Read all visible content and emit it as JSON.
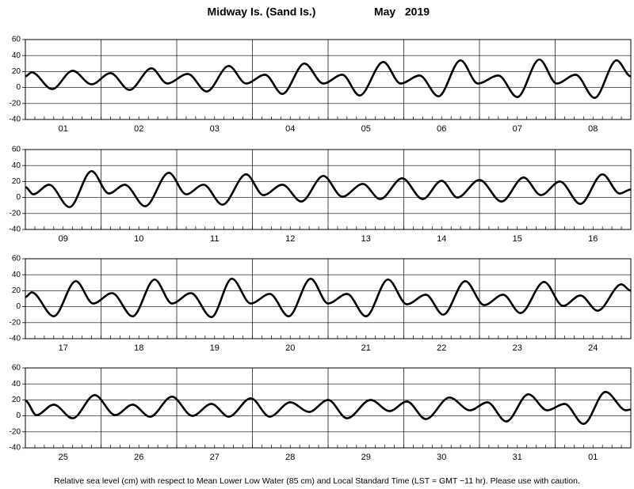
{
  "title": "Midway Is. (Sand Is.)",
  "date": "May   2019",
  "footnote": "Relative sea level (cm) with respect to Mean Lower Low Water (85 cm) and Local Standard Time (LST = GMT −11 hr). Please use with caution.",
  "chart_data": [
    {
      "type": "line",
      "color": "#000000",
      "categories": [
        "01",
        "02",
        "03",
        "04",
        "05",
        "06",
        "07",
        "08"
      ],
      "x": [
        0,
        2,
        8.5,
        15,
        21,
        27,
        33,
        40,
        45,
        51.5,
        57.5,
        64.5,
        70,
        76,
        81.5,
        88.5,
        94.5,
        100.5,
        106,
        113.5,
        119,
        125,
        131,
        138,
        143.5,
        150,
        156,
        163,
        168.5,
        174.5,
        180.5,
        187.5,
        192
      ],
      "values": [
        14,
        19,
        -2,
        21,
        4,
        18,
        -3,
        24,
        5,
        17,
        -5,
        27,
        5,
        16,
        -8,
        30,
        5,
        16,
        -10,
        32,
        5,
        15,
        -11,
        34,
        5,
        15,
        -12,
        35,
        5,
        16,
        -13,
        34,
        14
      ],
      "xlim": [
        0,
        192
      ],
      "ylim": [
        -40,
        60
      ],
      "yticks": [
        -40,
        -20,
        0,
        20,
        40,
        60
      ]
    },
    {
      "type": "line",
      "color": "#000000",
      "categories": [
        "09",
        "10",
        "11",
        "12",
        "13",
        "14",
        "15",
        "16"
      ],
      "x": [
        0,
        2.5,
        7.5,
        14,
        21,
        26.5,
        31.5,
        38,
        45.5,
        51,
        56.5,
        62.5,
        70,
        75.5,
        81.5,
        87.5,
        94.5,
        100.5,
        107,
        112.5,
        119.5,
        126,
        132,
        137,
        144,
        151,
        158,
        163.5,
        169.5,
        176,
        183,
        188.5,
        192
      ],
      "values": [
        13,
        4,
        16,
        -12,
        33,
        5,
        16,
        -11,
        31,
        4,
        16,
        -9,
        29,
        3,
        16,
        -5,
        27,
        1,
        17,
        -2,
        24,
        -2,
        21,
        0,
        22,
        -5,
        25,
        3,
        20,
        -8,
        29,
        5,
        10
      ],
      "xlim": [
        0,
        192
      ],
      "ylim": [
        -40,
        60
      ],
      "yticks": [
        -40,
        -20,
        0,
        20,
        40,
        60
      ]
    },
    {
      "type": "line",
      "color": "#000000",
      "categories": [
        "17",
        "18",
        "19",
        "20",
        "21",
        "22",
        "23",
        "24"
      ],
      "x": [
        0,
        2,
        9,
        16,
        21.5,
        27.5,
        34,
        41,
        46.5,
        52.5,
        59,
        65.5,
        71.5,
        77.5,
        83.5,
        90.5,
        96,
        102,
        108,
        115,
        121,
        127,
        132.5,
        139.5,
        145.5,
        151.5,
        157,
        164.5,
        170.5,
        176,
        181.5,
        189,
        192
      ],
      "values": [
        12,
        18,
        -12,
        32,
        4,
        17,
        -12,
        34,
        4,
        17,
        -13,
        35,
        4,
        16,
        -12,
        35,
        4,
        16,
        -12,
        34,
        3,
        15,
        -10,
        32,
        2,
        15,
        -8,
        31,
        1,
        14,
        -5,
        28,
        20
      ],
      "xlim": [
        0,
        192
      ],
      "ylim": [
        -40,
        60
      ],
      "yticks": [
        -40,
        -20,
        0,
        20,
        40,
        60
      ]
    },
    {
      "type": "line",
      "color": "#000000",
      "categories": [
        "25",
        "26",
        "27",
        "28",
        "29",
        "30",
        "31",
        "01"
      ],
      "x": [
        0,
        3.5,
        9,
        15,
        22,
        28.5,
        34,
        39.5,
        46.5,
        53,
        59,
        64.5,
        71.5,
        77.5,
        84,
        90,
        96,
        102,
        109.5,
        115.5,
        121,
        127,
        134.5,
        141,
        146.5,
        152.5,
        159.5,
        165.5,
        171,
        177,
        184,
        190.5,
        192
      ],
      "values": [
        19,
        1,
        14,
        -3,
        26,
        1,
        14,
        -1,
        24,
        0,
        15,
        -1,
        22,
        -1,
        17,
        5,
        20,
        -3,
        20,
        6,
        18,
        -4,
        23,
        7,
        17,
        -7,
        27,
        7,
        15,
        -10,
        30,
        7,
        8
      ],
      "xlim": [
        0,
        192
      ],
      "ylim": [
        -40,
        60
      ],
      "yticks": [
        -40,
        -20,
        0,
        20,
        40,
        60
      ]
    }
  ]
}
